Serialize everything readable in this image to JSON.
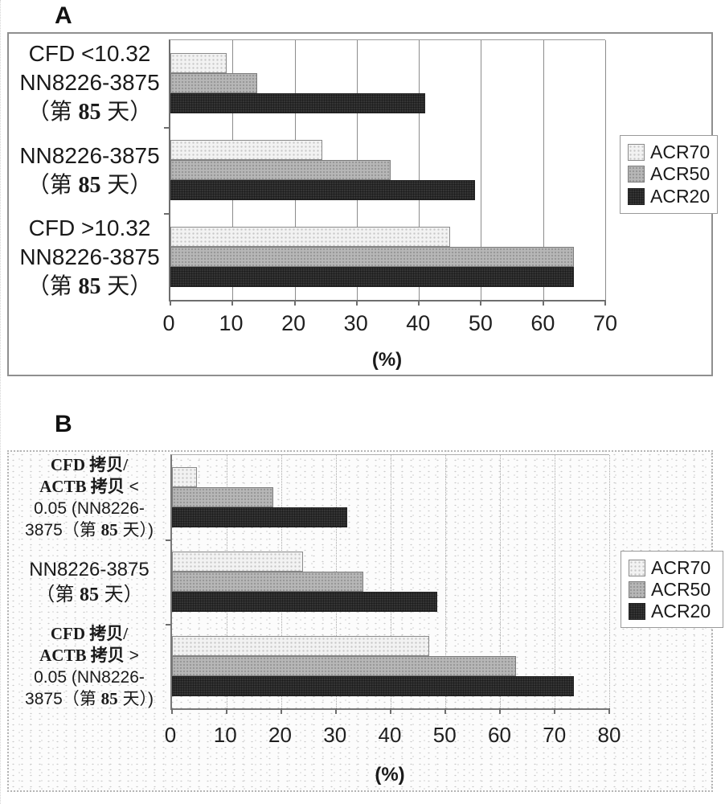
{
  "colors": {
    "acr70_fill": "#f2f2f2",
    "acr70_dot": "#c7c7c7",
    "acr70_border": "#8a8a8a",
    "acr50_fill": "#b7b7b7",
    "acr50_dot": "#969696",
    "acr50_border": "#7c7c7c",
    "acr20_fill": "#3d3d3d",
    "acr20_dot": "#1b1b1b",
    "acr20_border": "#222222",
    "grid": "#8c8c8c",
    "axis": "#6e6e6e",
    "text": "#1a1a1a"
  },
  "chart_data": [
    {
      "panel_label": "A",
      "type": "bar",
      "orientation": "horizontal",
      "xlabel": "(%)",
      "xlim": [
        0,
        70
      ],
      "xticks": [
        0,
        10,
        20,
        30,
        40,
        50,
        60,
        70
      ],
      "grid": true,
      "legend_position": "right",
      "legend": [
        "ACR70",
        "ACR50",
        "ACR20"
      ],
      "categories": [
        {
          "lines": [
            [
              {
                "t": "CFD <10.32"
              }
            ],
            [
              {
                "t": "NN8226-3875"
              }
            ],
            [
              {
                "t": "（第 "
              },
              {
                "t": "85",
                "b": true
              },
              {
                "t": " 天）"
              }
            ]
          ]
        },
        {
          "lines": [
            [
              {
                "t": "NN8226-3875"
              }
            ],
            [
              {
                "t": "（第 "
              },
              {
                "t": "85",
                "b": true
              },
              {
                "t": " 天）"
              }
            ]
          ]
        },
        {
          "lines": [
            [
              {
                "t": "CFD >10.32"
              }
            ],
            [
              {
                "t": "NN8226-3875"
              }
            ],
            [
              {
                "t": "（第 "
              },
              {
                "t": "85",
                "b": true
              },
              {
                "t": " 天）"
              }
            ]
          ]
        }
      ],
      "series": [
        {
          "name": "ACR70",
          "key": "acr70",
          "values": [
            9,
            24.5,
            45
          ]
        },
        {
          "name": "ACR50",
          "key": "acr50",
          "values": [
            14,
            35.5,
            65
          ]
        },
        {
          "name": "ACR20",
          "key": "acr20",
          "values": [
            41,
            49,
            65
          ]
        }
      ]
    },
    {
      "panel_label": "B",
      "type": "bar",
      "orientation": "horizontal",
      "xlabel": "(%)",
      "xlim": [
        0,
        80
      ],
      "xticks": [
        0,
        10,
        20,
        30,
        40,
        50,
        60,
        70,
        80
      ],
      "grid": true,
      "legend_position": "right",
      "legend": [
        "ACR70",
        "ACR50",
        "ACR20"
      ],
      "categories": [
        {
          "lines": [
            [
              {
                "t": "CFD 拷贝/",
                "b": true
              }
            ],
            [
              {
                "t": "ACTB 拷贝",
                "b": true
              },
              {
                "t": " <"
              }
            ],
            [
              {
                "t": "0.05 (NN8226-"
              }
            ],
            [
              {
                "t": "3875（第 "
              },
              {
                "t": "85",
                "b": true
              },
              {
                "t": " 天）)"
              }
            ]
          ]
        },
        {
          "lines": [
            [
              {
                "t": "NN8226-3875"
              }
            ],
            [
              {
                "t": "（第 "
              },
              {
                "t": "85",
                "b": true
              },
              {
                "t": " 天）"
              }
            ]
          ]
        },
        {
          "lines": [
            [
              {
                "t": "CFD 拷贝/",
                "b": true
              }
            ],
            [
              {
                "t": "ACTB 拷贝",
                "b": true
              },
              {
                "t": " >"
              }
            ],
            [
              {
                "t": "0.05 (NN8226-"
              }
            ],
            [
              {
                "t": "3875（第 "
              },
              {
                "t": "85",
                "b": true
              },
              {
                "t": " 天）)"
              }
            ]
          ]
        }
      ],
      "series": [
        {
          "name": "ACR70",
          "key": "acr70",
          "values": [
            4.5,
            24,
            47
          ]
        },
        {
          "name": "ACR50",
          "key": "acr50",
          "values": [
            18.5,
            35,
            63
          ]
        },
        {
          "name": "ACR20",
          "key": "acr20",
          "values": [
            32,
            48.5,
            73.5
          ]
        }
      ]
    }
  ]
}
